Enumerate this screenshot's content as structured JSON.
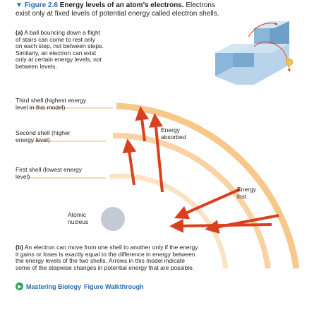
{
  "caption": {
    "marker": "▼",
    "figure_label": "Figure 2.6",
    "title": "Energy levels of an atom’s electrons.",
    "line1_rest": "Electrons",
    "line2": "exist only at fixed levels of potential energy called electron shells."
  },
  "part_a": {
    "letter": "(a)",
    "lines": [
      "A ball bouncing down a flight",
      "of stairs can come to rest only",
      "on each step, not between steps.",
      "Similarly, an electron can exist",
      "only at certain energy levels, not",
      "between levels."
    ]
  },
  "labels": {
    "third_shell": [
      "Third shell (highest energy",
      "level in this model)"
    ],
    "second_shell": [
      "Second shell (higher",
      "energy level)"
    ],
    "first_shell": [
      "First shell (lowest energy",
      "level)"
    ],
    "nucleus": [
      "Atomic",
      "nucleus"
    ],
    "absorbed": [
      "Energy",
      "absorbed"
    ],
    "lost": [
      "Energy",
      "lost"
    ]
  },
  "part_b": {
    "letter": "(b)",
    "lines": [
      "An electron can move from one shell to another only if the energy",
      "it gains or loses is exactly equal to the difference in energy between",
      "the energy levels of the two shells. Arrows in this model indicate",
      "some of the stepwise changes in potential energy that are possible."
    ]
  },
  "mastering": {
    "brand": "Mastering Biology",
    "link": "Figure Walkthrough"
  },
  "colors": {
    "shell_outer": "#f7c88a",
    "shell_mid": "#f9d3a3",
    "shell_inner": "#fbe3c4",
    "arrow": "#d9411e",
    "stairs": "#8ab7d9",
    "ball": "#f2c14e",
    "nucleus": "#c3cad4",
    "accent": "#2b6cb0"
  }
}
